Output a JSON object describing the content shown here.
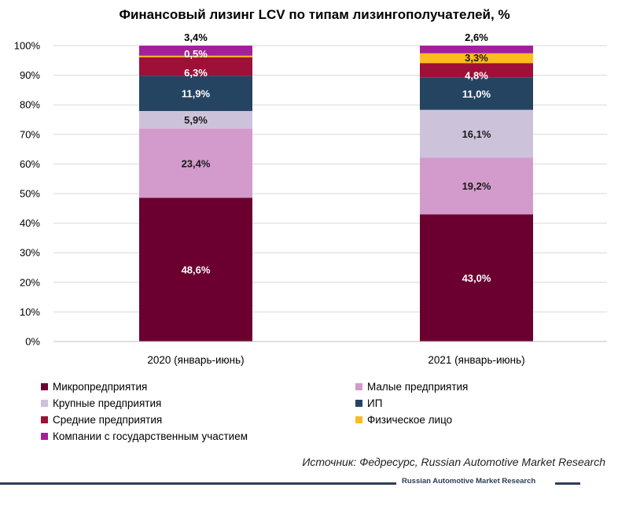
{
  "chart_data": {
    "type": "bar",
    "stacked": true,
    "title": "Финансовый лизинг LCV по типам лизингополучателей, %",
    "categories": [
      "2020 (январь-июнь)",
      "2021 (январь-июнь)"
    ],
    "ylim": [
      0,
      100
    ],
    "y_ticks": [
      "0%",
      "10%",
      "20%",
      "30%",
      "40%",
      "50%",
      "60%",
      "70%",
      "80%",
      "90%",
      "100%"
    ],
    "grid": true,
    "legend_position": "bottom",
    "series": [
      {
        "name": "Микропредприятия",
        "color": "#6b0030",
        "values": [
          48.6,
          43.0
        ],
        "labels": [
          "48,6%",
          "43,0%"
        ]
      },
      {
        "name": "Малые предприятия",
        "color": "#d39bcb",
        "values": [
          23.4,
          19.2
        ],
        "labels": [
          "23,4%",
          "19,2%"
        ]
      },
      {
        "name": "Крупные предприятия",
        "color": "#ccc3db",
        "values": [
          5.9,
          16.1
        ],
        "labels": [
          "5,9%",
          "16,1%"
        ]
      },
      {
        "name": "ИП",
        "color": "#254462",
        "values": [
          11.9,
          11.0
        ],
        "labels": [
          "11,9%",
          "11,0%"
        ]
      },
      {
        "name": "Средние предприятия",
        "color": "#9e1038",
        "values": [
          6.3,
          4.8
        ],
        "labels": [
          "6,3%",
          "4,8%"
        ]
      },
      {
        "name": "Физическое лицо",
        "color": "#fbbc1e",
        "values": [
          0.5,
          3.3
        ],
        "labels": [
          "",
          "3,3%"
        ]
      },
      {
        "name": "Компании с государственным участием",
        "color": "#a4209b",
        "values": [
          3.4,
          2.6
        ],
        "labels": [
          "0,5%",
          ""
        ]
      }
    ],
    "top_labels": [
      "3,4%",
      "2,6%"
    ]
  },
  "source": "Источник: Федресурс, Russian Automotive Market Research",
  "footer_brand": "Russian Automotive Market Research"
}
